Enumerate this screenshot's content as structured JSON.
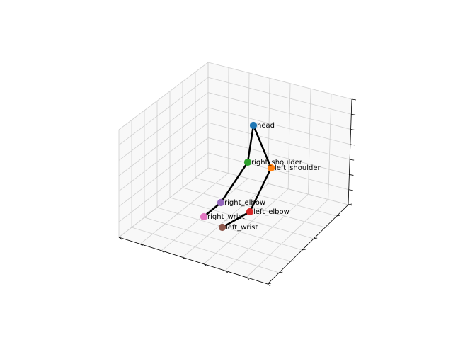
{
  "chart_data": {
    "type": "scatter",
    "projection": "3d",
    "title": "",
    "xlabel": "",
    "ylabel": "",
    "zlabel": "",
    "grid": true,
    "axis_tick_labels_visible": false,
    "marker_size": 6,
    "skeleton_color": "#000000",
    "joints": [
      {
        "name": "head",
        "color": "#1f77b4"
      },
      {
        "name": "right_shoulder",
        "color": "#2ca02c"
      },
      {
        "name": "left_shoulder",
        "color": "#ff7f0e"
      },
      {
        "name": "right_elbow",
        "color": "#9467bd"
      },
      {
        "name": "left_elbow",
        "color": "#d62728"
      },
      {
        "name": "right_wrist",
        "color": "#e377c2"
      },
      {
        "name": "left_wrist",
        "color": "#8c564b"
      }
    ],
    "bones": [
      [
        "head",
        "right_shoulder"
      ],
      [
        "head",
        "left_shoulder"
      ],
      [
        "right_shoulder",
        "right_elbow"
      ],
      [
        "right_elbow",
        "right_wrist"
      ],
      [
        "left_shoulder",
        "left_elbow"
      ],
      [
        "left_elbow",
        "left_wrist"
      ]
    ]
  }
}
